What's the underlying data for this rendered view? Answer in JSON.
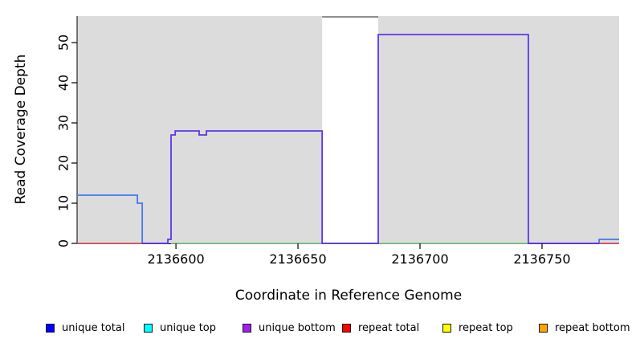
{
  "chart_data": {
    "type": "line",
    "step": true,
    "title": "",
    "xlabel": "Coordinate in Reference Genome",
    "ylabel": "Read Coverage Depth",
    "xlim": [
      2136559.5,
      2136781.6
    ],
    "ylim": [
      0,
      56.6
    ],
    "x_ticks": [
      2136600,
      2136650,
      2136700,
      2136750
    ],
    "x_tick_labels": [
      "2136600",
      "2136650",
      "2136700",
      "2136750"
    ],
    "y_ticks": [
      0,
      10,
      20,
      30,
      40,
      50
    ],
    "y_tick_labels": [
      "0",
      "10",
      "20",
      "30",
      "40",
      "50"
    ],
    "grid": false,
    "plot_background": "#dcdcdc",
    "axis_color": "#000000",
    "gap_region": {
      "x_start": 2136659.9,
      "x_end": 2136682.9,
      "fill": "#ffffff",
      "top_border": "#8f8f8f"
    },
    "series": [
      {
        "name": "baseline-green",
        "color": "#85c985",
        "segments": [
          [
            [
              2136598,
              0
            ],
            [
              2136744.4,
              0
            ]
          ]
        ]
      },
      {
        "name": "repeat-total",
        "color": "#e05a66",
        "segments": [
          [
            [
              2136559.5,
              0
            ],
            [
              2136586.2,
              0
            ]
          ],
          [
            [
              2136773.4,
              0
            ],
            [
              2136781.6,
              0
            ]
          ]
        ]
      },
      {
        "name": "unique-total",
        "color": "#4678ee",
        "segments": [
          [
            [
              2136559.5,
              12
            ],
            [
              2136584.2,
              12
            ],
            [
              2136584.2,
              10
            ],
            [
              2136586.2,
              10
            ],
            [
              2136586.2,
              0
            ]
          ],
          [
            [
              2136773.4,
              0
            ],
            [
              2136773.4,
              1
            ],
            [
              2136781.6,
              1
            ]
          ]
        ]
      },
      {
        "name": "unique-bottom",
        "color": "#5e35ef",
        "segments": [
          [
            [
              2136586.2,
              0
            ],
            [
              2136596.7,
              0
            ],
            [
              2136596.7,
              1
            ],
            [
              2136598,
              1
            ],
            [
              2136598,
              27
            ],
            [
              2136599.7,
              27
            ],
            [
              2136599.7,
              28
            ],
            [
              2136609.5,
              28
            ],
            [
              2136609.5,
              27
            ],
            [
              2136612.5,
              27
            ],
            [
              2136612.5,
              28
            ],
            [
              2136659.9,
              28
            ],
            [
              2136659.9,
              0
            ],
            [
              2136682.9,
              0
            ],
            [
              2136682.9,
              52
            ],
            [
              2136744.4,
              52
            ],
            [
              2136744.4,
              0
            ],
            [
              2136773.4,
              0
            ]
          ]
        ]
      }
    ],
    "legend": {
      "position": "bottom",
      "entries": [
        {
          "label": "unique total",
          "color": "#0000ff"
        },
        {
          "label": "unique top",
          "color": "#00ffff"
        },
        {
          "label": "unique bottom",
          "color": "#a020f0"
        },
        {
          "label": "repeat total",
          "color": "#ff0000"
        },
        {
          "label": "repeat top",
          "color": "#ffff00"
        },
        {
          "label": "repeat bottom",
          "color": "#ffa500"
        }
      ]
    }
  }
}
